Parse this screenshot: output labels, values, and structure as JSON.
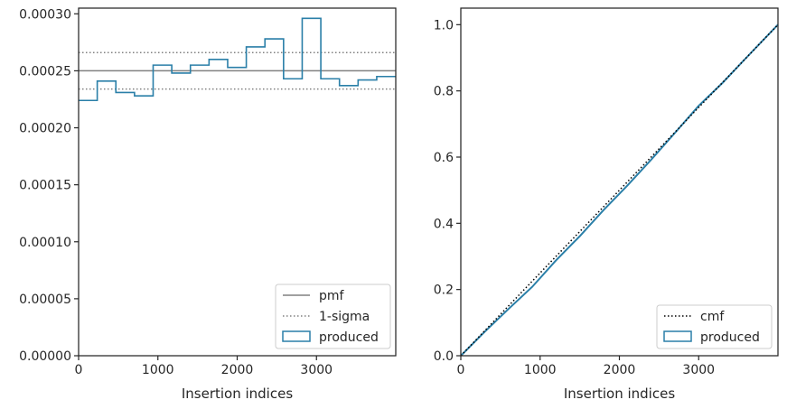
{
  "chart_data": [
    {
      "type": "step",
      "xlabel": "Insertion indices",
      "ylabel": "",
      "xlim": [
        0,
        4000
      ],
      "ylim": [
        0,
        0.000305
      ],
      "xticks": [
        0,
        1000,
        2000,
        3000
      ],
      "yticks": [
        0,
        5e-05,
        0.0001,
        0.00015,
        0.0002,
        0.00025,
        0.0003
      ],
      "ytick_labels": [
        "0.00000",
        "0.00005",
        "0.00010",
        "0.00015",
        "0.00020",
        "0.00025",
        "0.00030"
      ],
      "grid": false,
      "legend_position": "bottom-right",
      "pmf": 0.00025,
      "sigma_upper": 0.000266,
      "sigma_lower": 0.000234,
      "bin_edges": [
        0,
        235,
        470,
        705,
        940,
        1175,
        1410,
        1645,
        1880,
        2115,
        2350,
        2585,
        2820,
        3055,
        3290,
        3525,
        3760,
        4000
      ],
      "produced_values": [
        0.000224,
        0.000241,
        0.000231,
        0.000228,
        0.000255,
        0.000248,
        0.000255,
        0.00026,
        0.000253,
        0.000271,
        0.000278,
        0.000243,
        0.000296,
        0.000243,
        0.000237,
        0.000242,
        0.000245
      ],
      "series": [
        {
          "name": "pmf",
          "style": "solid",
          "color": "#808080"
        },
        {
          "name": "1-sigma",
          "style": "dotted",
          "color": "#808080"
        },
        {
          "name": "produced",
          "style": "step",
          "color": "#2a7fa8"
        }
      ]
    },
    {
      "type": "line",
      "xlabel": "Insertion indices",
      "ylabel": "",
      "xlim": [
        0,
        4000
      ],
      "ylim": [
        0,
        1.05
      ],
      "xticks": [
        0,
        1000,
        2000,
        3000
      ],
      "yticks": [
        0,
        0.2,
        0.4,
        0.6,
        0.8,
        1.0
      ],
      "ytick_labels": [
        "0.0",
        "0.2",
        "0.4",
        "0.6",
        "0.8",
        "1.0"
      ],
      "grid": false,
      "legend_position": "bottom-right",
      "cmf_x": [
        0,
        4000
      ],
      "cmf_y": [
        0,
        1
      ],
      "produced_x": [
        0,
        300,
        600,
        900,
        1200,
        1500,
        1800,
        2100,
        2400,
        2700,
        3000,
        3300,
        3600,
        4000
      ],
      "produced_y": [
        0,
        0.072,
        0.141,
        0.208,
        0.288,
        0.361,
        0.44,
        0.514,
        0.592,
        0.673,
        0.755,
        0.824,
        0.9,
        1.0
      ],
      "series": [
        {
          "name": "cmf",
          "style": "dotted",
          "color": "#000000"
        },
        {
          "name": "produced",
          "style": "line",
          "color": "#2a7fa8"
        }
      ]
    }
  ]
}
